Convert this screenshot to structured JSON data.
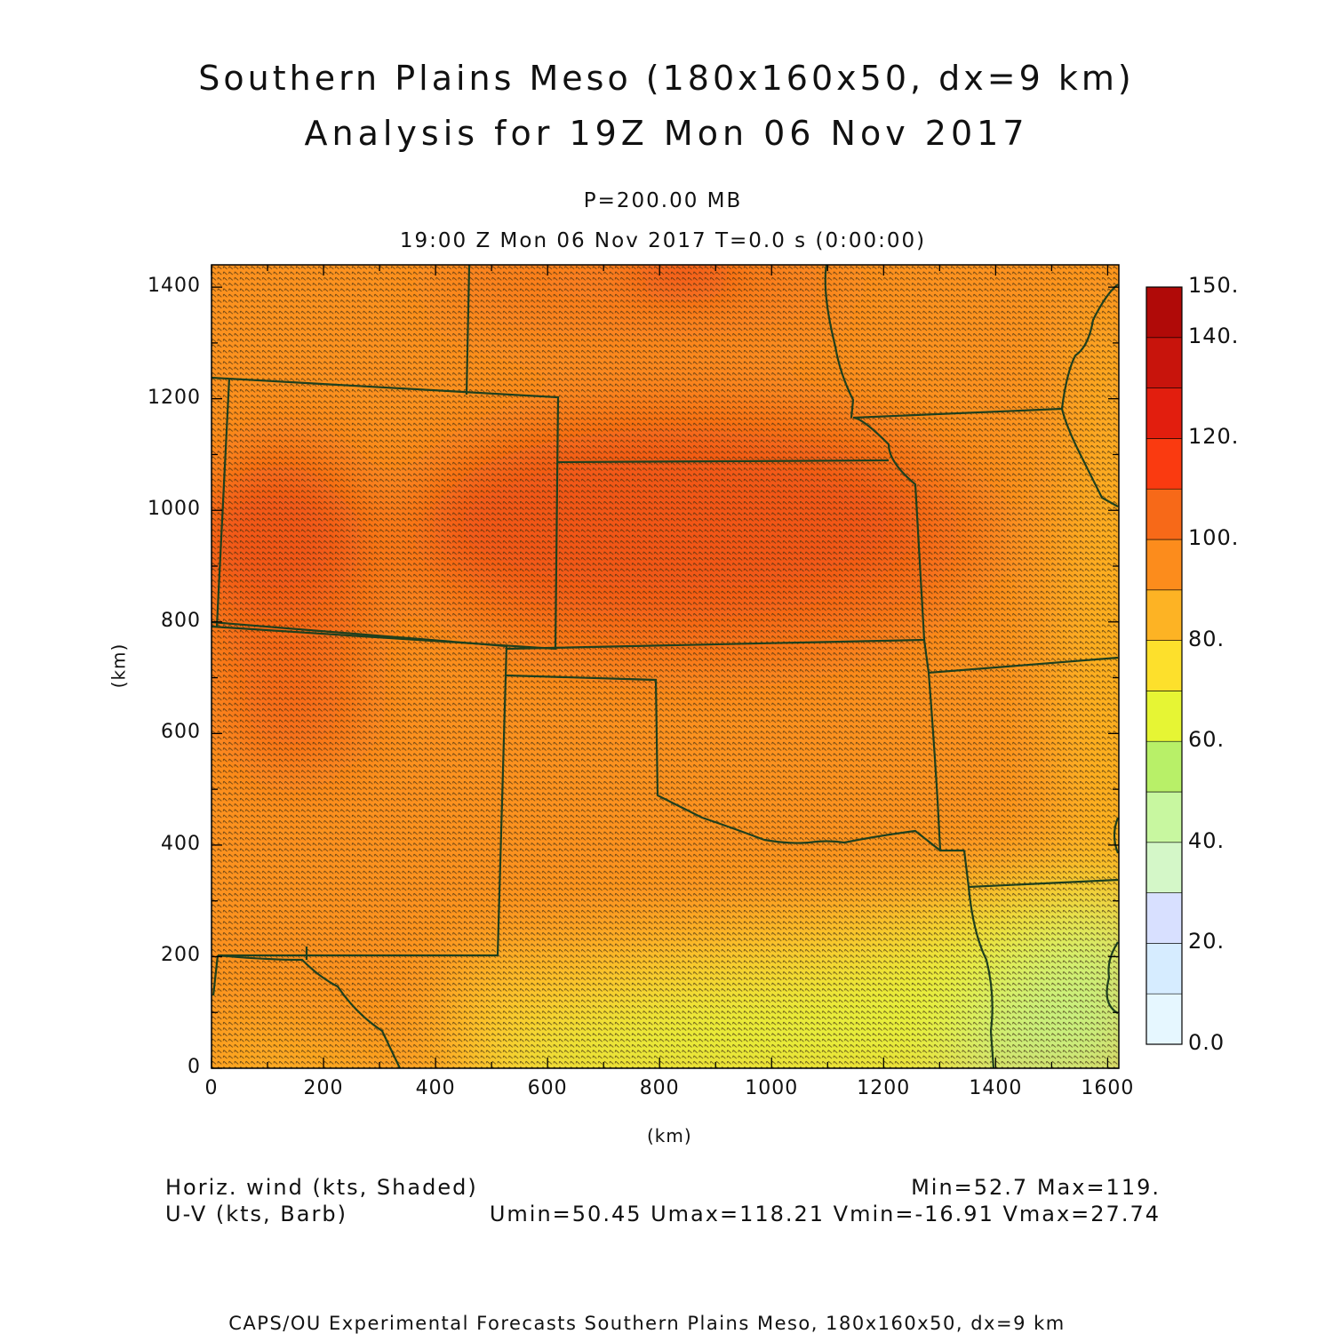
{
  "header": {
    "title_line1": "Southern Plains Meso (180x160x50, dx=9 km)",
    "title_line2": "Analysis for 19Z Mon 06 Nov 2017",
    "level": "P=200.00 MB",
    "time": "19:00 Z Mon 06 Nov 2017    T=0.0 s (0:00:00)"
  },
  "axes": {
    "x_ticks": [
      "0",
      "200",
      "400",
      "600",
      "800",
      "1000",
      "1200",
      "1400",
      "1600"
    ],
    "y_ticks": [
      "0",
      "200",
      "400",
      "600",
      "800",
      "1000",
      "1200",
      "1400"
    ],
    "xlabel": "(km)",
    "ylabel": "(km)",
    "x_range_km": [
      0,
      1620
    ],
    "y_range_km": [
      0,
      1440
    ]
  },
  "colorbar": {
    "labels": [
      "0.0",
      "20.",
      "40.",
      "60.",
      "80.",
      "100.",
      "120.",
      "140.",
      "150."
    ],
    "colors": [
      "#e6f7ff",
      "#d6ecff",
      "#d8e0ff",
      "#d4f7c8",
      "#c8f7a0",
      "#b8f068",
      "#e6f534",
      "#fde02c",
      "#fdb324",
      "#fc8c1c",
      "#f76918",
      "#fa3a10",
      "#e21e0e",
      "#c8140c",
      "#b00a08"
    ]
  },
  "footer": {
    "left_line1": "Horiz. wind (kts, Shaded)",
    "left_line2": "U-V (kts, Barb)",
    "right_line1": "Min=52.7 Max=119.",
    "right_line2": "Umin=50.45 Umax=118.21 Vmin=-16.91 Vmax=27.74",
    "credit": "CAPS/OU Experimental Forecasts  Southern Plains Meso, 180x160x50, dx=9 km"
  },
  "field_colors": {
    "background": "#fc921f",
    "weak_south": "#e7ef3a",
    "weaker_southeast": "#d0f078",
    "moderate": "#fdc52a",
    "strong": "#f76918",
    "strongest": "#f24f16",
    "border": "#1e3f1e",
    "barb": "#3a2a0e"
  }
}
